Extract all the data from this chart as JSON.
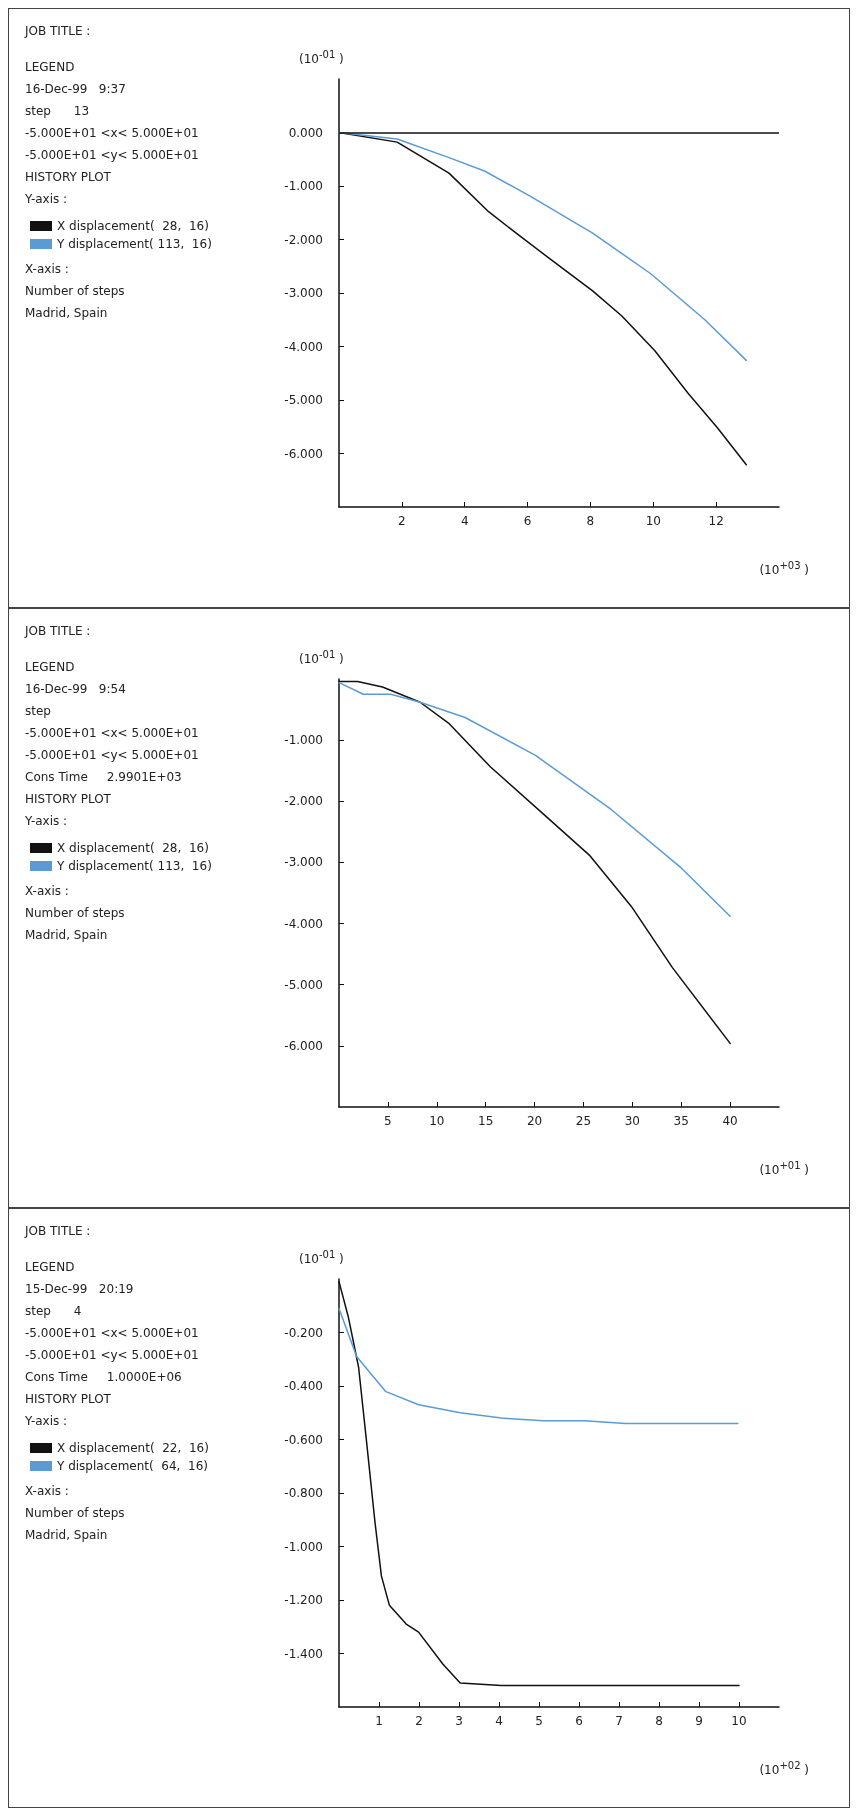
{
  "chart_data": [
    {
      "type": "line",
      "ylabel": "(10$^{-01}$ )",
      "xlabel": "(10$^{+03}$ )",
      "annotations": [
        "JOB TITLE :",
        "LEGEND",
        "16-Dec-99   9:37",
        "step      13",
        "-5.000E+01 <x< 5.000E+01",
        "-5.000E+01 <y< 5.000E+01",
        "HISTORY PLOT",
        "Y-axis :",
        "X-axis :",
        "Number of steps",
        "Madrid, Spain"
      ],
      "xlim": [
        0,
        14
      ],
      "xticks": [
        2,
        4,
        6,
        8,
        10,
        12
      ],
      "ylim": [
        -7,
        1
      ],
      "yticks": [
        {
          "value": 0,
          "label": "0.000"
        },
        {
          "value": -1,
          "label": "-1.000"
        },
        {
          "value": -2,
          "label": "-2.000"
        },
        {
          "value": -3,
          "label": "-3.000"
        },
        {
          "value": -4,
          "label": "-4.000"
        },
        {
          "value": -5,
          "label": "-5.000"
        },
        {
          "value": -6,
          "label": "-6.000"
        }
      ],
      "ref_lines": [
        {
          "axis": "y",
          "value": 0,
          "color": "#111111"
        }
      ],
      "series": [
        {
          "name": "X displacement(  28,  16)",
          "color": "#111111",
          "x": [
            0,
            1.85,
            3.5,
            4.76,
            5.7,
            7.0,
            8.07,
            9.0,
            10.05,
            11.1,
            12.04,
            12.96
          ],
          "values": [
            0,
            -0.18,
            -0.76,
            -1.48,
            -1.91,
            -2.49,
            -2.96,
            -3.43,
            -4.08,
            -4.87,
            -5.52,
            -6.21
          ]
        },
        {
          "name": "Y displacement( 113,  16)",
          "color": "#5b9bd5",
          "x": [
            0,
            1.85,
            3.5,
            4.63,
            6.08,
            8.07,
            9.92,
            11.64,
            12.96
          ],
          "values": [
            0,
            -0.12,
            -0.47,
            -0.72,
            -1.19,
            -1.88,
            -2.64,
            -3.5,
            -4.26
          ]
        }
      ],
      "grid": false,
      "legend": "left",
      "marker": "none"
    },
    {
      "type": "line",
      "ylabel": "(10$^{-01}$ )",
      "xlabel": "(10$^{+01}$ )",
      "annotations": [
        "JOB TITLE :",
        "LEGEND",
        "16-Dec-99   9:54",
        "step",
        "-5.000E+01 <x< 5.000E+01",
        "-5.000E+01 <y< 5.000E+01",
        "Cons Time     2.9901E+03",
        "HISTORY PLOT",
        "Y-axis :",
        "X-axis :",
        "Number of steps",
        "Madrid, Spain"
      ],
      "xlim": [
        0,
        45
      ],
      "xticks": [
        5,
        10,
        15,
        20,
        25,
        30,
        35,
        40
      ],
      "ylim": [
        -7,
        0
      ],
      "yticks": [
        {
          "value": -1,
          "label": "-1.000"
        },
        {
          "value": -2,
          "label": "-2.000"
        },
        {
          "value": -3,
          "label": "-3.000"
        },
        {
          "value": -4,
          "label": "-4.000"
        },
        {
          "value": -5,
          "label": "-5.000"
        },
        {
          "value": -6,
          "label": "-6.000"
        }
      ],
      "series": [
        {
          "name": "X displacement(  28,  16)",
          "color": "#111111",
          "x": [
            0,
            1.9,
            4.45,
            8.3,
            11.2,
            15.5,
            21.4,
            25.6,
            29.9,
            34.1,
            40
          ],
          "values": [
            -0.04,
            -0.04,
            -0.13,
            -0.38,
            -0.72,
            -1.44,
            -2.28,
            -2.88,
            -3.72,
            -4.72,
            -5.96
          ]
        },
        {
          "name": "Y displacement( 113,  16)",
          "color": "#5b9bd5",
          "x": [
            0,
            2.5,
            5.3,
            8.3,
            12.9,
            20.1,
            27.8,
            35,
            40
          ],
          "values": [
            -0.06,
            -0.25,
            -0.25,
            -0.38,
            -0.63,
            -1.25,
            -2.13,
            -3.09,
            -3.88
          ]
        }
      ],
      "grid": false,
      "legend": "left",
      "marker": "none"
    },
    {
      "type": "line",
      "ylabel": "(10$^{-01}$ )",
      "xlabel": "(10$^{+02}$ )",
      "annotations": [
        "JOB TITLE :",
        "LEGEND",
        "15-Dec-99   20:19",
        "step      4",
        "-5.000E+01 <x< 5.000E+01",
        "-5.000E+01 <y< 5.000E+01",
        "Cons Time     1.0000E+06",
        "HISTORY PLOT",
        "Y-axis :",
        "X-axis :",
        "Number of steps",
        "Madrid, Spain"
      ],
      "xlim": [
        0,
        11
      ],
      "xticks": [
        1,
        2,
        3,
        4,
        5,
        6,
        7,
        8,
        9,
        10
      ],
      "ylim": [
        -1.6,
        0
      ],
      "yticks": [
        {
          "value": -0.2,
          "label": "-0.200"
        },
        {
          "value": -0.4,
          "label": "-0.400"
        },
        {
          "value": -0.6,
          "label": "-0.600"
        },
        {
          "value": -0.8,
          "label": "-0.800"
        },
        {
          "value": -1.0,
          "label": "-1.000"
        },
        {
          "value": -1.2,
          "label": "-1.200"
        },
        {
          "value": -1.4,
          "label": "-1.400"
        }
      ],
      "series": [
        {
          "name": "X displacement(  22,  16)",
          "color": "#111111",
          "x": [
            0,
            0.23,
            0.49,
            0.69,
            0.9,
            1.06,
            1.26,
            1.68,
            1.99,
            2.6,
            3.03,
            4.06,
            10
          ],
          "values": [
            -0.01,
            -0.14,
            -0.33,
            -0.61,
            -0.91,
            -1.11,
            -1.22,
            -1.29,
            -1.32,
            -1.44,
            -1.51,
            -1.52,
            -1.52
          ]
        },
        {
          "name": "Y displacement(  64,  16)",
          "color": "#5b9bd5",
          "x": [
            0,
            0.44,
            1.16,
            1.99,
            3.03,
            4.06,
            5.1,
            6.13,
            7.17,
            8.2,
            9.97
          ],
          "values": [
            -0.11,
            -0.29,
            -0.42,
            -0.47,
            -0.5,
            -0.52,
            -0.53,
            -0.53,
            -0.54,
            -0.54,
            -0.54
          ]
        }
      ],
      "grid": false,
      "legend": "left",
      "marker": "none"
    }
  ]
}
